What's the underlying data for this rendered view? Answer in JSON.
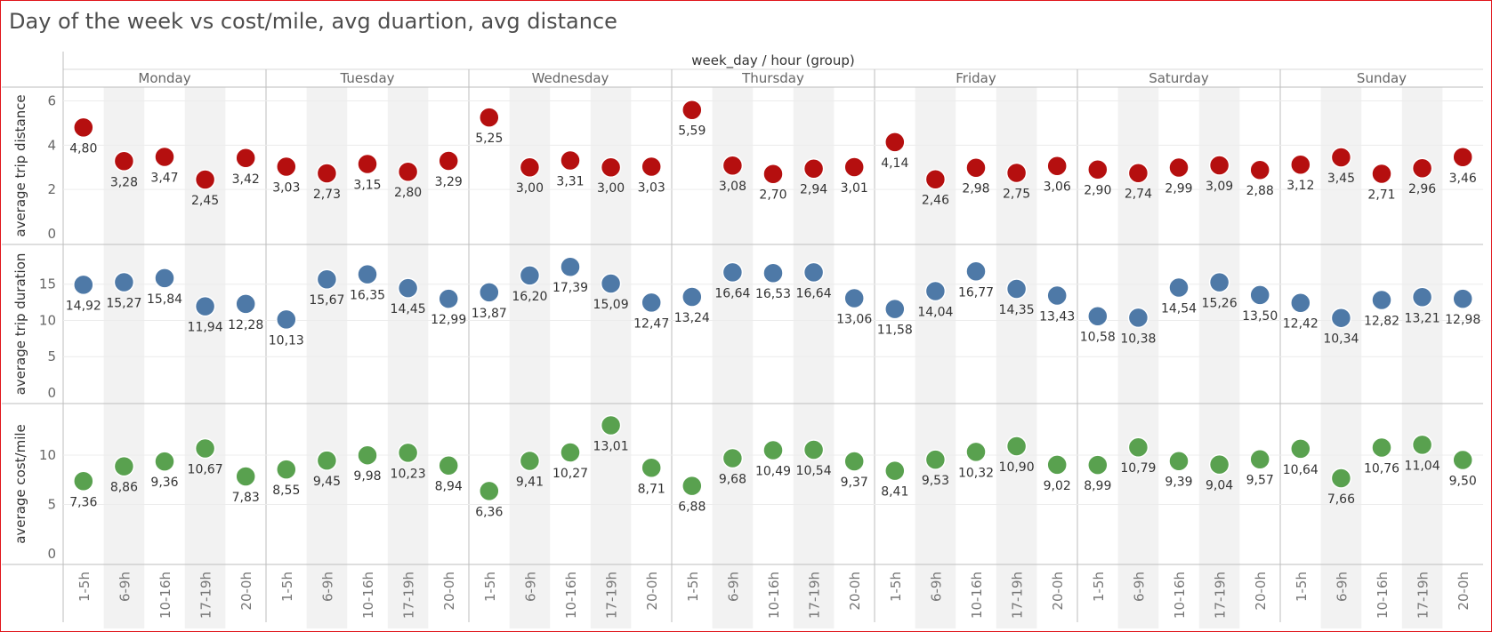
{
  "title": "Day of the week vs cost/mile, avg duartion, avg distance",
  "chart_data": {
    "type": "scatter",
    "column_header": "week_day  /  hour (group)",
    "days": [
      "Monday",
      "Tuesday",
      "Wednesday",
      "Thursday",
      "Friday",
      "Saturday",
      "Sunday"
    ],
    "hour_groups": [
      "1-5h",
      "6-9h",
      "10-16h",
      "17-19h",
      "20-0h"
    ],
    "panels": [
      {
        "ylabel": "average trip distance",
        "color": "#b50f0f",
        "ylim": [
          0,
          6.3
        ],
        "ticks": [
          0,
          2,
          4,
          6
        ],
        "values": [
          [
            4.8,
            3.28,
            3.47,
            2.45,
            3.42
          ],
          [
            3.03,
            2.73,
            3.15,
            2.8,
            3.29
          ],
          [
            5.25,
            3.0,
            3.31,
            3.0,
            3.03
          ],
          [
            5.59,
            3.08,
            2.7,
            2.94,
            3.01
          ],
          [
            4.14,
            2.46,
            2.98,
            2.75,
            3.06
          ],
          [
            2.9,
            2.74,
            2.99,
            3.09,
            2.88
          ],
          [
            3.12,
            3.45,
            2.71,
            2.96,
            3.46
          ]
        ],
        "labels": [
          [
            "4,80",
            "3,28",
            "3,47",
            "2,45",
            "3,42"
          ],
          [
            "3,03",
            "2,73",
            "3,15",
            "2,80",
            "3,29"
          ],
          [
            "5,25",
            "3,00",
            "3,31",
            "3,00",
            "3,03"
          ],
          [
            "5,59",
            "3,08",
            "2,70",
            "2,94",
            "3,01"
          ],
          [
            "4,14",
            "2,46",
            "2,98",
            "2,75",
            "3,06"
          ],
          [
            "2,90",
            "2,74",
            "2,99",
            "3,09",
            "2,88"
          ],
          [
            "3,12",
            "3,45",
            "2,71",
            "2,96",
            "3,46"
          ]
        ]
      },
      {
        "ylabel": "average trip duration",
        "color": "#4e79a7",
        "ylim": [
          0,
          19.5
        ],
        "ticks": [
          0,
          5,
          10,
          15
        ],
        "values": [
          [
            14.92,
            15.27,
            15.84,
            11.94,
            12.28
          ],
          [
            10.13,
            15.67,
            16.35,
            14.45,
            12.99
          ],
          [
            13.87,
            16.2,
            17.39,
            15.09,
            12.47
          ],
          [
            13.24,
            16.64,
            16.53,
            16.64,
            13.06
          ],
          [
            11.58,
            14.04,
            16.77,
            14.35,
            13.43
          ],
          [
            10.58,
            10.38,
            14.54,
            15.26,
            13.5
          ],
          [
            12.42,
            10.34,
            12.82,
            13.21,
            12.98
          ]
        ],
        "labels": [
          [
            "14,92",
            "15,27",
            "15,84",
            "11,94",
            "12,28"
          ],
          [
            "10,13",
            "15,67",
            "16,35",
            "14,45",
            "12,99"
          ],
          [
            "13,87",
            "16,20",
            "17,39",
            "15,09",
            "12,47"
          ],
          [
            "13,24",
            "16,64",
            "16,53",
            "16,64",
            "13,06"
          ],
          [
            "11,58",
            "14,04",
            "16,77",
            "14,35",
            "13,43"
          ],
          [
            "10,58",
            "10,38",
            "14,54",
            "15,26",
            "13,50"
          ],
          [
            "12,42",
            "10,34",
            "12,82",
            "13,21",
            "12,98"
          ]
        ]
      },
      {
        "ylabel": "average cost/mile",
        "color": "#59a14f",
        "ylim": [
          0,
          14.5
        ],
        "ticks": [
          0,
          5,
          10
        ],
        "values": [
          [
            7.36,
            8.86,
            9.36,
            10.67,
            7.83
          ],
          [
            8.55,
            9.45,
            9.98,
            10.23,
            8.94
          ],
          [
            6.36,
            9.41,
            10.27,
            13.01,
            8.71
          ],
          [
            6.88,
            9.68,
            10.49,
            10.54,
            9.37
          ],
          [
            8.41,
            9.53,
            10.32,
            10.9,
            9.02
          ],
          [
            8.99,
            10.79,
            9.39,
            9.04,
            9.57
          ],
          [
            10.64,
            7.66,
            10.76,
            11.04,
            9.5
          ]
        ],
        "labels": [
          [
            "7,36",
            "8,86",
            "9,36",
            "10,67",
            "7,83"
          ],
          [
            "8,55",
            "9,45",
            "9,98",
            "10,23",
            "8,94"
          ],
          [
            "6,36",
            "9,41",
            "10,27",
            "13,01",
            "8,71"
          ],
          [
            "6,88",
            "9,68",
            "10,49",
            "10,54",
            "9,37"
          ],
          [
            "8,41",
            "9,53",
            "10,32",
            "10,90",
            "9,02"
          ],
          [
            "8,99",
            "10,79",
            "9,39",
            "9,04",
            "9,57"
          ],
          [
            "10,64",
            "7,66",
            "10,76",
            "11,04",
            "9,50"
          ]
        ]
      }
    ]
  }
}
